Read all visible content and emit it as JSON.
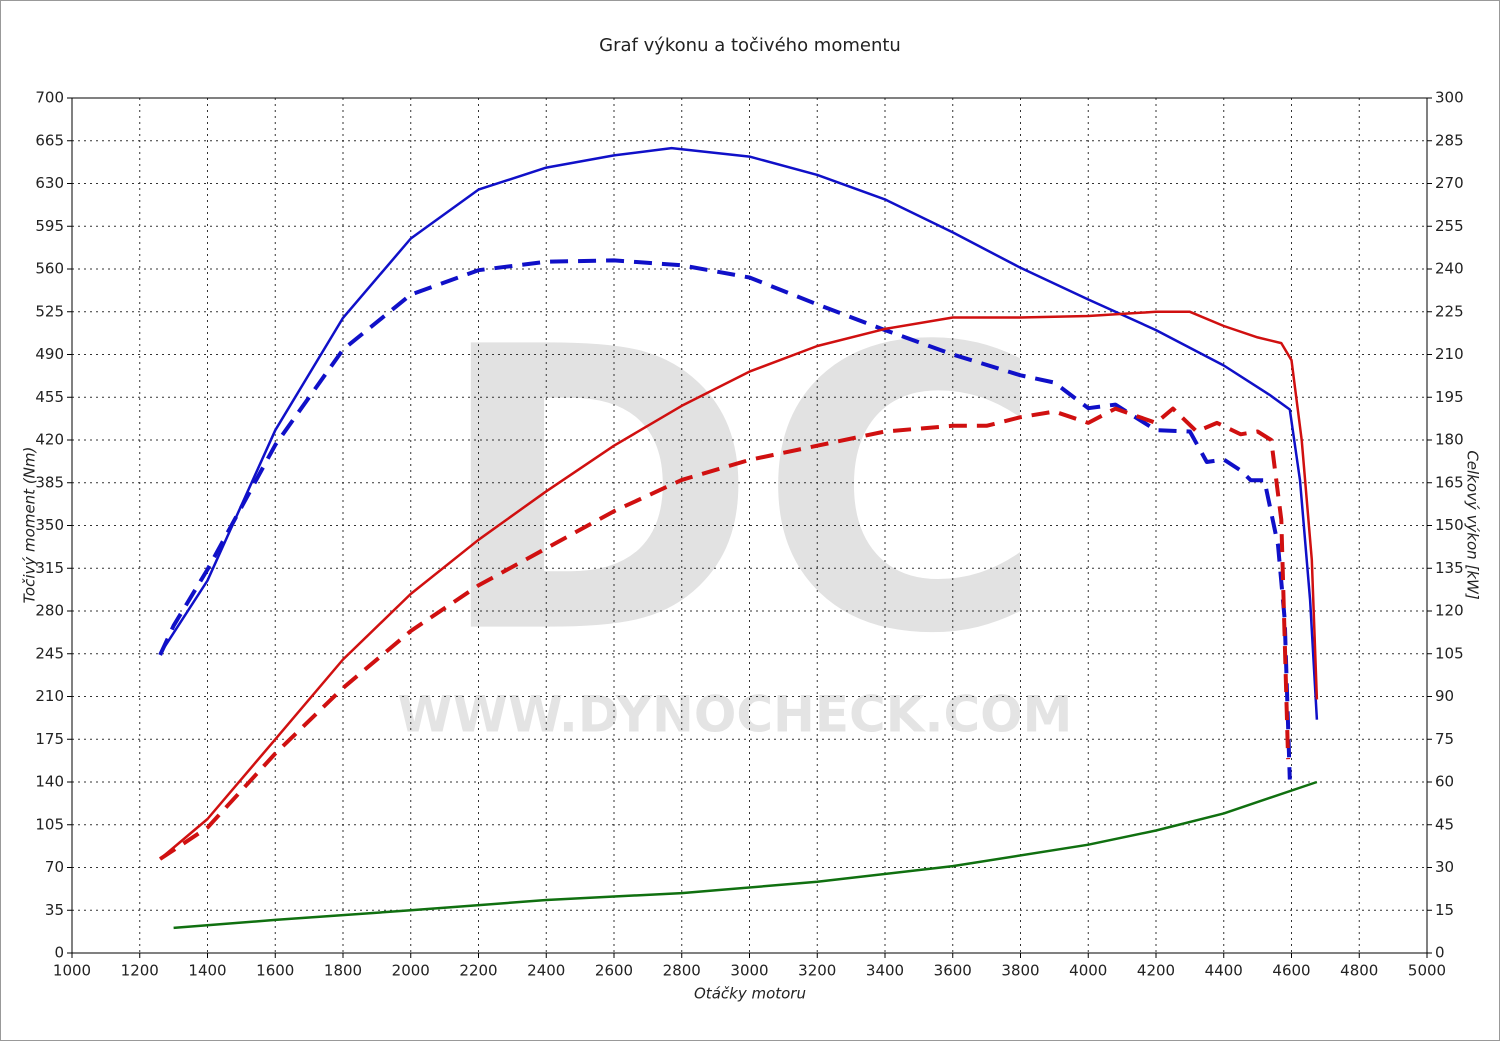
{
  "chart_data": {
    "type": "line",
    "title": "Graf výkonu a točivého momentu",
    "x_label": "Otáčky motoru",
    "y_label": "Točivý moment (Nm)",
    "y2_label": "Celkový výkon [kW]",
    "watermark": {
      "logo": "DC",
      "url": "WWW.DYNOCHECK.COM"
    },
    "xlim": [
      1000,
      5000
    ],
    "xticks": [
      1000,
      1200,
      1400,
      1600,
      1800,
      2000,
      2200,
      2400,
      2600,
      2800,
      3000,
      3200,
      3400,
      3600,
      3800,
      4000,
      4200,
      4400,
      4600,
      4800,
      5000
    ],
    "ylim": [
      0,
      700
    ],
    "yticks": [
      0,
      35,
      70,
      105,
      140,
      175,
      210,
      245,
      280,
      315,
      350,
      385,
      420,
      455,
      490,
      525,
      560,
      595,
      630,
      665,
      700
    ],
    "y2lim": [
      0,
      300
    ],
    "y2ticks": [
      0,
      15,
      30,
      45,
      60,
      75,
      90,
      105,
      120,
      135,
      150,
      165,
      180,
      195,
      210,
      225,
      240,
      255,
      270,
      285,
      300
    ],
    "grid": true,
    "series": [
      {
        "color": "#1010c8",
        "style": "solid",
        "axis": "y",
        "x": [
          1260,
          1400,
          1600,
          1800,
          2000,
          2200,
          2400,
          2600,
          2770,
          3000,
          3200,
          3400,
          3600,
          3800,
          4000,
          4200,
          4400,
          4535,
          4595,
          4625,
          4655,
          4675
        ],
        "values": [
          245,
          305,
          428,
          520,
          585,
          625,
          643,
          653,
          659,
          652,
          637,
          617,
          590,
          561,
          535,
          510,
          481,
          457,
          445,
          387,
          289,
          191
        ]
      },
      {
        "color": "#1010c8",
        "style": "dashed",
        "axis": "y",
        "x": [
          1260,
          1300,
          1400,
          1600,
          1800,
          2000,
          2200,
          2400,
          2600,
          2800,
          3000,
          3200,
          3400,
          3600,
          3800,
          3900,
          4000,
          4080,
          4200,
          4300,
          4350,
          4400,
          4450,
          4480,
          4520,
          4560,
          4580,
          4595
        ],
        "values": [
          244,
          268,
          314,
          416,
          494,
          539,
          559,
          566,
          567,
          563,
          553,
          531,
          510,
          490,
          473,
          467,
          446,
          449,
          428,
          427,
          402,
          404,
          395,
          387,
          387,
          334,
          273,
          142
        ]
      },
      {
        "color": "#d01010",
        "style": "solid",
        "axis": "y2",
        "x": [
          1260,
          1400,
          1600,
          1800,
          2000,
          2200,
          2400,
          2600,
          2800,
          3000,
          3200,
          3400,
          3600,
          3800,
          4000,
          4200,
          4300,
          4400,
          4500,
          4570,
          4600,
          4630,
          4660,
          4675
        ],
        "values": [
          33,
          47,
          75,
          103,
          126,
          145,
          162,
          178,
          192,
          204,
          213,
          219,
          223,
          223,
          223.5,
          225,
          225,
          220,
          216,
          214,
          208,
          180,
          138,
          89
        ]
      },
      {
        "color": "#d01010",
        "style": "dashed",
        "axis": "y2",
        "x": [
          1260,
          1400,
          1600,
          1800,
          2000,
          2200,
          2400,
          2600,
          2800,
          3000,
          3200,
          3400,
          3600,
          3700,
          3800,
          3900,
          4000,
          4080,
          4200,
          4250,
          4320,
          4380,
          4450,
          4500,
          4540,
          4570,
          4590
        ],
        "values": [
          33,
          44,
          70,
          93,
          113,
          129,
          142,
          155,
          166,
          173,
          178,
          183,
          185,
          185,
          188,
          190,
          186,
          191,
          186,
          191,
          183,
          186,
          182,
          183,
          180,
          152,
          68
        ]
      },
      {
        "color": "#107010",
        "style": "solid",
        "axis": "y2",
        "x": [
          1300,
          1600,
          2000,
          2400,
          2800,
          3200,
          3600,
          4000,
          4200,
          4400,
          4675
        ],
        "values": [
          8.8,
          11.6,
          15,
          18.6,
          21,
          25,
          30.5,
          38,
          43,
          49,
          60
        ]
      }
    ]
  }
}
